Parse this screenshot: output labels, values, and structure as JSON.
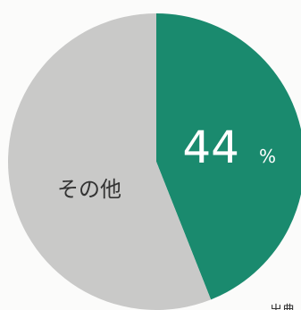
{
  "chart_data": {
    "type": "pie",
    "slices": [
      {
        "value": 44,
        "label_value": "44",
        "label_unit": "%",
        "color": "#1a8a6e"
      },
      {
        "value": 56,
        "label": "その他",
        "color": "#c9c9c8"
      }
    ],
    "footer_text": "出典"
  },
  "colors": {
    "background": "#fbfbfa",
    "accent": "#1a8a6e",
    "other": "#c9c9c8",
    "label_light": "#ffffff",
    "label_dark": "#333333"
  }
}
